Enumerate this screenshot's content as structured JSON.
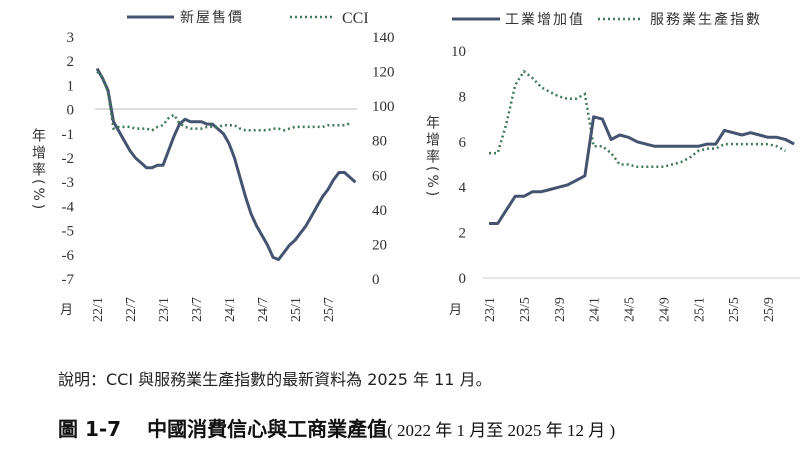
{
  "colors": {
    "solid": "#44536f",
    "dotted": "#3e7a56",
    "zero_line": "#bbbbbb"
  },
  "chart_data": [
    {
      "type": "line",
      "legend": [
        "新屋售價",
        "CCI"
      ],
      "ylabel": "年增率(%)",
      "xlabel": "月",
      "x_ticks": [
        "22/1",
        "22/7",
        "23/1",
        "23/7",
        "24/1",
        "24/7",
        "25/1",
        "25/7"
      ],
      "x_start": "22/1",
      "ylim": [
        -7,
        3
      ],
      "y_ticks": [
        "3",
        "2",
        "1",
        "0",
        "-1",
        "-2",
        "-3",
        "-4",
        "-5",
        "-6",
        "-7"
      ],
      "y2lim": [
        0,
        140
      ],
      "y2_ticks": [
        "140",
        "120",
        "100",
        "80",
        "60",
        "40",
        "20",
        "0"
      ],
      "series": [
        {
          "name": "新屋售價",
          "axis": "left",
          "style": "solid",
          "values": [
            1.7,
            1.3,
            0.8,
            -0.5,
            -0.9,
            -1.3,
            -1.7,
            -2.0,
            -2.2,
            -2.4,
            -2.4,
            -2.3,
            -2.3,
            -1.7,
            -1.1,
            -0.6,
            -0.4,
            -0.5,
            -0.5,
            -0.5,
            -0.6,
            -0.6,
            -0.8,
            -1.0,
            -1.4,
            -2.0,
            -2.8,
            -3.6,
            -4.3,
            -4.8,
            -5.2,
            -5.6,
            -6.1,
            -6.2,
            -5.9,
            -5.6,
            -5.4,
            -5.1,
            -4.8,
            -4.4,
            -4.0,
            -3.6,
            -3.3,
            -2.9,
            -2.6,
            -2.6,
            -2.8,
            -3.0
          ]
        },
        {
          "name": "CCI",
          "axis": "right",
          "style": "dotted",
          "values": [
            120,
            117,
            108,
            87,
            88,
            88,
            88,
            87,
            87,
            87,
            86,
            88,
            89,
            93,
            95,
            90,
            88,
            87,
            87,
            87,
            88,
            88,
            88,
            89,
            89,
            89,
            87,
            86,
            86,
            86,
            86,
            86,
            87,
            87,
            86,
            87,
            88,
            88,
            88,
            88,
            88,
            88,
            89,
            89,
            89,
            89,
            90
          ]
        }
      ]
    },
    {
      "type": "line",
      "legend": [
        "工業增加值",
        "服務業生產指數"
      ],
      "ylabel": "年增率(%)",
      "xlabel": "月",
      "x_ticks": [
        "23/1",
        "23/5",
        "23/9",
        "24/1",
        "24/5",
        "24/9",
        "25/1",
        "25/5",
        "25/9"
      ],
      "x_start": "23/1",
      "ylim": [
        0,
        10
      ],
      "y_ticks": [
        "10",
        "8",
        "6",
        "4",
        "2",
        "0"
      ],
      "series": [
        {
          "name": "工業增加值",
          "style": "solid",
          "values": [
            2.4,
            2.4,
            3.0,
            3.6,
            3.6,
            3.8,
            3.8,
            3.9,
            4.0,
            4.1,
            4.3,
            4.5,
            7.1,
            7.0,
            6.1,
            6.3,
            6.2,
            6.0,
            5.9,
            5.8,
            5.8,
            5.8,
            5.8,
            5.8,
            5.8,
            5.9,
            5.9,
            6.5,
            6.4,
            6.3,
            6.4,
            6.3,
            6.2,
            6.2,
            6.1,
            5.9
          ]
        },
        {
          "name": "服務業生產指數",
          "style": "dotted",
          "values": [
            5.5,
            5.5,
            6.8,
            8.5,
            9.1,
            8.8,
            8.4,
            8.2,
            8.0,
            7.9,
            7.9,
            8.1,
            5.8,
            5.8,
            5.5,
            5.0,
            5.0,
            4.9,
            4.9,
            4.9,
            4.9,
            5.0,
            5.1,
            5.3,
            5.6,
            5.7,
            5.7,
            5.9,
            5.9,
            5.9,
            5.9,
            5.9,
            5.9,
            5.8,
            5.6
          ]
        }
      ]
    }
  ],
  "note": "說明：CCI 與服務業生產指數的最新資料為 2025 年 11 月。",
  "caption": {
    "number": "圖 1-7",
    "title": "中國消費信心與工商業產值",
    "range": "( 2022 年 1 月至 2025 年 12 月 )"
  }
}
